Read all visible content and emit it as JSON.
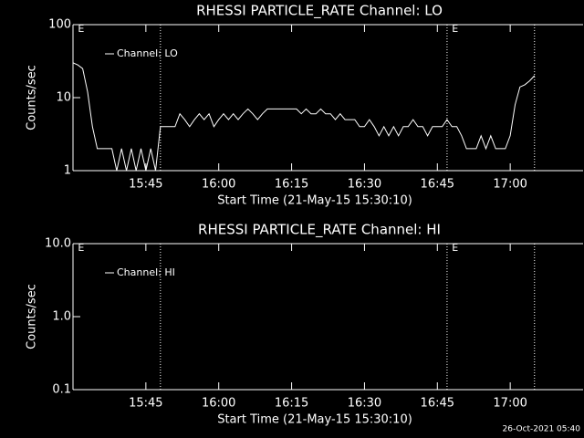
{
  "footer": "26-Oct-2021 05:40",
  "chart_data": [
    {
      "type": "line",
      "title": "RHESSI PARTICLE_RATE Channel: LO",
      "xlabel": "Start Time (21-May-15 15:30:10)",
      "ylabel": "Counts/sec",
      "log_y": true,
      "legend": "upper left",
      "xlim": [
        "15:30",
        "17:15"
      ],
      "xticks": [
        "15:45",
        "16:00",
        "16:15",
        "16:30",
        "16:45",
        "17:00"
      ],
      "ylim": [
        1,
        100
      ],
      "yticks": [
        1,
        10,
        100
      ],
      "vlines": [
        "15:48",
        "16:47",
        "17:05"
      ],
      "annotations": [
        {
          "text": "E",
          "x": "15:31"
        },
        {
          "text": "E",
          "x": "16:48"
        }
      ],
      "x": [
        "15:30",
        "15:31",
        "15:32",
        "15:33",
        "15:34",
        "15:35",
        "15:36",
        "15:37",
        "15:38",
        "15:39",
        "15:40",
        "15:41",
        "15:42",
        "15:43",
        "15:44",
        "15:45",
        "15:46",
        "15:47",
        "15:48",
        "15:49",
        "15:50",
        "15:51",
        "15:52",
        "15:53",
        "15:54",
        "15:55",
        "15:56",
        "15:57",
        "15:58",
        "15:59",
        "16:00",
        "16:01",
        "16:02",
        "16:03",
        "16:04",
        "16:05",
        "16:06",
        "16:07",
        "16:08",
        "16:09",
        "16:10",
        "16:11",
        "16:12",
        "16:13",
        "16:14",
        "16:15",
        "16:16",
        "16:17",
        "16:18",
        "16:19",
        "16:20",
        "16:21",
        "16:22",
        "16:23",
        "16:24",
        "16:25",
        "16:26",
        "16:27",
        "16:28",
        "16:29",
        "16:30",
        "16:31",
        "16:32",
        "16:33",
        "16:34",
        "16:35",
        "16:36",
        "16:37",
        "16:38",
        "16:39",
        "16:40",
        "16:41",
        "16:42",
        "16:43",
        "16:44",
        "16:45",
        "16:46",
        "16:47",
        "16:48",
        "16:49",
        "16:50",
        "16:51",
        "16:52",
        "16:53",
        "16:54",
        "16:55",
        "16:56",
        "16:57",
        "16:58",
        "16:59",
        "17:00",
        "17:01",
        "17:02",
        "17:03",
        "17:04",
        "17:05"
      ],
      "series": [
        {
          "name": "Channel: LO",
          "color": "#ffffff",
          "values": [
            30,
            28,
            25,
            12,
            4,
            2,
            2,
            2,
            2,
            1,
            2,
            1,
            2,
            1,
            2,
            1,
            2,
            1,
            4,
            4,
            4,
            4,
            6,
            5,
            4,
            5,
            6,
            5,
            6,
            4,
            5,
            6,
            5,
            6,
            5,
            6,
            7,
            6,
            5,
            6,
            7,
            7,
            7,
            7,
            7,
            7,
            7,
            6,
            7,
            6,
            6,
            7,
            6,
            6,
            5,
            6,
            5,
            5,
            5,
            4,
            4,
            5,
            4,
            3,
            4,
            3,
            4,
            3,
            4,
            4,
            5,
            4,
            4,
            3,
            4,
            4,
            4,
            5,
            4,
            4,
            3,
            2,
            2,
            2,
            3,
            2,
            3,
            2,
            2,
            2,
            3,
            8,
            14,
            15,
            17,
            20
          ]
        }
      ]
    },
    {
      "type": "line",
      "title": "RHESSI PARTICLE_RATE Channel: HI",
      "xlabel": "Start Time (21-May-15 15:30:10)",
      "ylabel": "Counts/sec",
      "log_y": true,
      "legend": "upper left",
      "xlim": [
        "15:30",
        "17:15"
      ],
      "xticks": [
        "15:45",
        "16:00",
        "16:15",
        "16:30",
        "16:45",
        "17:00"
      ],
      "ylim": [
        0.1,
        10
      ],
      "yticks": [
        0.1,
        {
          "value": 1,
          "label": "1.0"
        },
        {
          "value": 10,
          "label": "10.0"
        }
      ],
      "vlines": [
        "15:48",
        "16:47",
        "17:05"
      ],
      "annotations": [
        {
          "text": "E",
          "x": "15:31"
        },
        {
          "text": "E",
          "x": "16:48"
        }
      ],
      "x": [],
      "series": [
        {
          "name": "Channel: HI",
          "color": "#ffffff",
          "values": []
        }
      ]
    }
  ]
}
